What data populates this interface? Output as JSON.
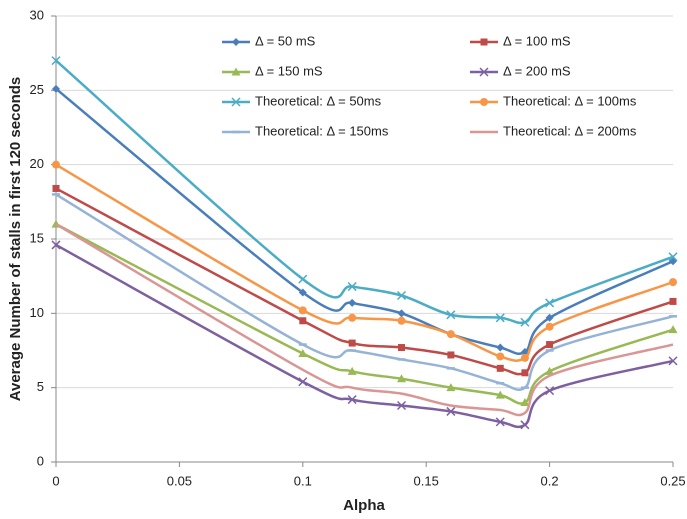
{
  "chart_data": {
    "type": "line",
    "x_label": "Alpha",
    "y_label": "Average Number of stalls in first 120 seconds",
    "x": [
      0,
      0.1,
      0.12,
      0.14,
      0.16,
      0.18,
      0.19,
      0.2,
      0.25
    ],
    "xlim": [
      0,
      0.25
    ],
    "xticks": [
      0,
      0.05,
      0.1,
      0.15,
      0.2,
      0.25
    ],
    "ylim": [
      0,
      30
    ],
    "yticks": [
      0,
      5,
      10,
      15,
      20,
      25,
      30
    ],
    "grid": true,
    "series": [
      {
        "name": "Δ = 50 mS",
        "color": "#4a7ebb",
        "marker": "diamond",
        "values": [
          25.1,
          11.4,
          10.7,
          10.0,
          8.6,
          7.7,
          7.4,
          9.7,
          13.5
        ]
      },
      {
        "name": "Δ = 100 mS",
        "color": "#be4b48",
        "marker": "square",
        "values": [
          18.4,
          9.5,
          8.0,
          7.7,
          7.2,
          6.3,
          6.0,
          7.9,
          10.8
        ]
      },
      {
        "name": "Δ = 150 mS",
        "color": "#98b954",
        "marker": "triangle",
        "values": [
          16.0,
          7.3,
          6.1,
          5.6,
          5.0,
          4.5,
          4.0,
          6.1,
          8.9
        ]
      },
      {
        "name": "Δ = 200 mS",
        "color": "#7d60a0",
        "marker": "x",
        "values": [
          14.6,
          5.4,
          4.2,
          3.8,
          3.4,
          2.7,
          2.5,
          4.8,
          6.8
        ]
      },
      {
        "name": "Theoretical: Δ = 50ms",
        "color": "#4bacc6",
        "marker": "x",
        "values": [
          27.0,
          12.3,
          11.8,
          11.2,
          9.9,
          9.7,
          9.4,
          10.7,
          13.8
        ]
      },
      {
        "name": "Theoretical: Δ = 100ms",
        "color": "#f79646",
        "marker": "circle",
        "values": [
          20.0,
          10.2,
          9.7,
          9.5,
          8.6,
          7.1,
          7.0,
          9.1,
          12.1
        ]
      },
      {
        "name": "Theoretical: Δ = 150ms",
        "color": "#95b3d7",
        "marker": "dash",
        "values": [
          18.0,
          7.9,
          7.5,
          6.9,
          6.3,
          5.3,
          5.0,
          7.5,
          9.8
        ]
      },
      {
        "name": "Theoretical: Δ = 200ms",
        "color": "#d99694",
        "marker": "none",
        "values": [
          16.0,
          6.2,
          5.0,
          4.6,
          3.8,
          3.5,
          3.3,
          5.8,
          7.9
        ]
      }
    ]
  }
}
